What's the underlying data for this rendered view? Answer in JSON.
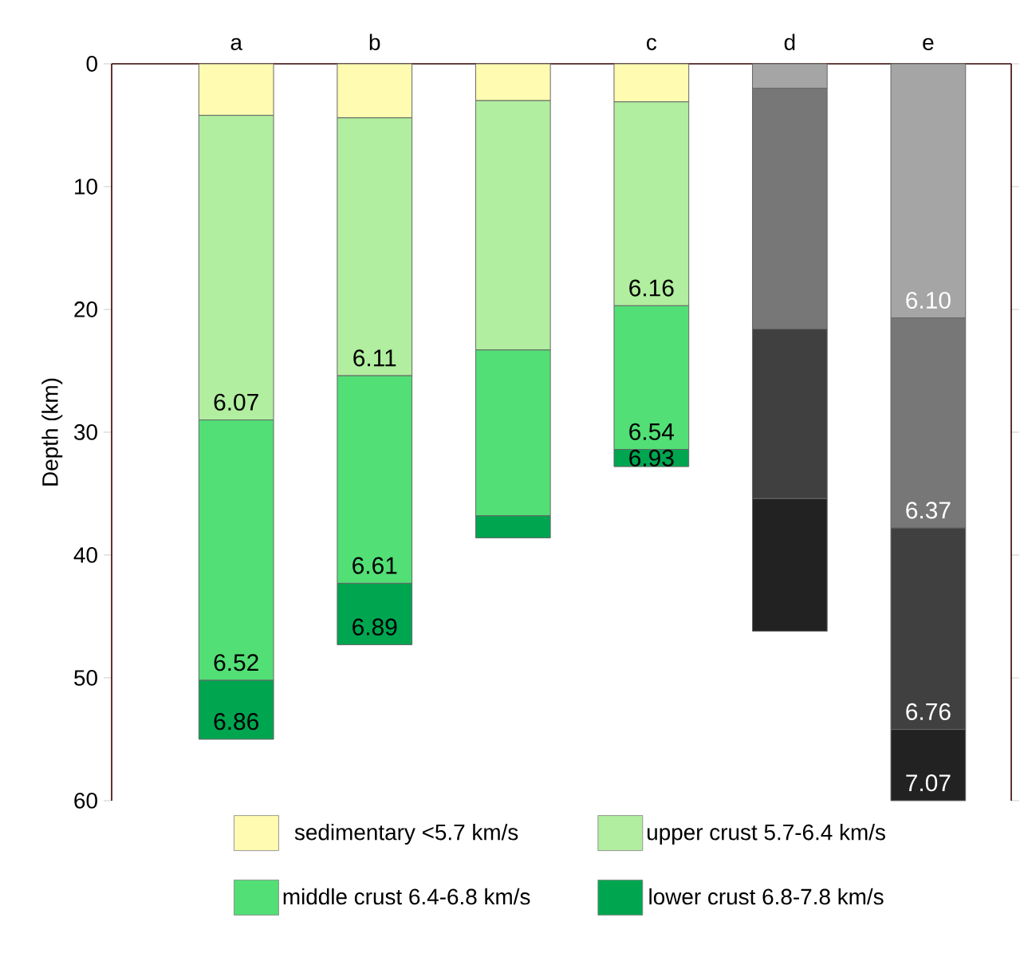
{
  "chart_data": {
    "type": "bar",
    "stacked": true,
    "ylabel": "Depth (km)",
    "categories": [
      "a",
      "b",
      null,
      "c",
      "d",
      "e"
    ],
    "ylim": [
      60,
      0
    ],
    "yticks": [
      0,
      10,
      20,
      30,
      40,
      50,
      60
    ],
    "legend": "bottom",
    "series": [
      {
        "name": "sedimentary <5.7 km/s",
        "color": "#fffbb0",
        "colors": [
          "#fffbb0",
          "#fffbb0",
          "#fffbb0",
          "#fffbb0",
          "#a5a5a5",
          "#a5a5a5"
        ],
        "values": [
          4.2,
          4.4,
          3.0,
          3.1,
          2.0,
          20.7
        ]
      },
      {
        "name": "upper crust 5.7-6.4 km/s",
        "color": "#b1ee9f",
        "colors": [
          "#b1ee9f",
          "#b1ee9f",
          "#b1ee9f",
          "#b1ee9f",
          "#777777",
          "#777777"
        ],
        "values": [
          24.8,
          21.0,
          20.3,
          16.6,
          19.6,
          17.1
        ]
      },
      {
        "name": "middle crust 6.4-6.8 km/s",
        "color": "#52df76",
        "colors": [
          "#52df76",
          "#52df76",
          "#52df76",
          "#52df76",
          "#404040",
          "#404040"
        ],
        "values": [
          21.2,
          16.9,
          13.5,
          11.7,
          13.8,
          16.4
        ]
      },
      {
        "name": "lower crust 6.8-7.8 km/s",
        "color": "#00a550",
        "colors": [
          "#00a550",
          "#00a550",
          "#00a550",
          "#00a550",
          "#222222",
          "#222222"
        ],
        "values": [
          4.8,
          5.0,
          1.8,
          1.4,
          10.8,
          5.8
        ]
      }
    ],
    "annotations": [
      {
        "text": "6.07",
        "x": "a",
        "y": 29.0
      },
      {
        "text": "6.52",
        "x": "a",
        "y": 50.2
      },
      {
        "text": "6.86",
        "x": "a",
        "y": 55.0
      },
      {
        "text": "6.11",
        "x": "b",
        "y": 25.4
      },
      {
        "text": "6.61",
        "x": "b",
        "y": 42.3
      },
      {
        "text": "6.89",
        "x": "b",
        "y": 47.3
      },
      {
        "text": "6.16",
        "x": "c",
        "y": 19.7
      },
      {
        "text": "6.54",
        "x": "c",
        "y": 31.4
      },
      {
        "text": "6.93",
        "x": "c",
        "y": 32.8
      },
      {
        "text": "6.10",
        "x": "e",
        "y": 20.7
      },
      {
        "text": "6.37",
        "x": "e",
        "y": 37.8
      },
      {
        "text": "6.76",
        "x": "e",
        "y": 54.2
      },
      {
        "text": "7.07",
        "x": "e",
        "y": 60.0
      }
    ]
  }
}
